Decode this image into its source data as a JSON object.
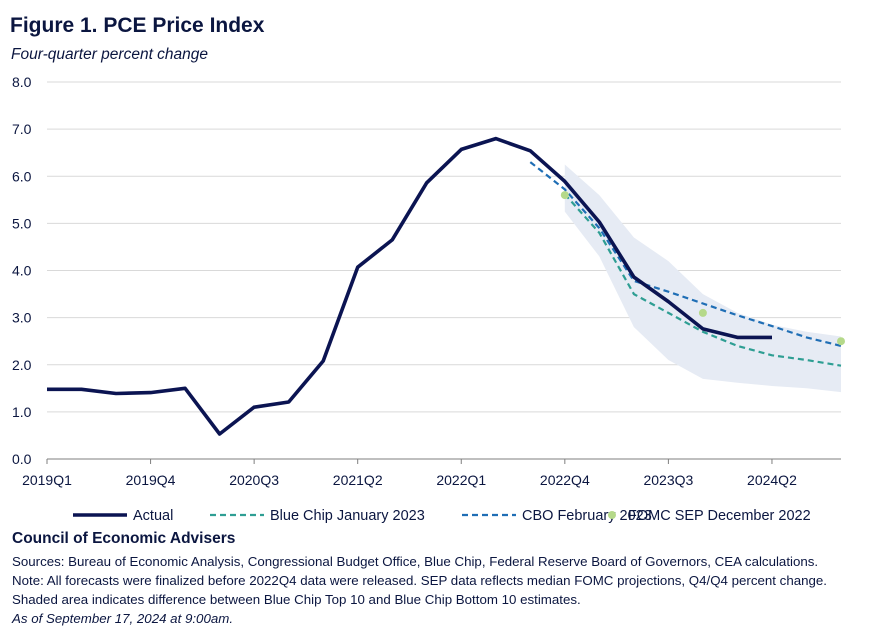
{
  "title": "Figure 1. PCE Price Index",
  "subtitle": "Four-quarter percent change",
  "chart_data": {
    "type": "line",
    "title": "Figure 1. PCE Price Index",
    "ylabel": "Four-quarter percent change",
    "xlabel": "",
    "ylim": [
      0,
      8
    ],
    "yticks": [
      "0.0",
      "1.0",
      "2.0",
      "3.0",
      "4.0",
      "5.0",
      "6.0",
      "7.0",
      "8.0"
    ],
    "quarters": [
      "2019Q1",
      "2019Q2",
      "2019Q3",
      "2019Q4",
      "2020Q1",
      "2020Q2",
      "2020Q3",
      "2020Q4",
      "2021Q1",
      "2021Q2",
      "2021Q3",
      "2021Q4",
      "2022Q1",
      "2022Q2",
      "2022Q3",
      "2022Q4",
      "2023Q1",
      "2023Q2",
      "2023Q3",
      "2023Q4",
      "2024Q1",
      "2024Q2",
      "2024Q3",
      "2024Q4"
    ],
    "x_tick_labels": [
      "2019Q1",
      "2019Q4",
      "2020Q3",
      "2021Q2",
      "2022Q1",
      "2022Q4",
      "2023Q3",
      "2024Q2"
    ],
    "series": [
      {
        "name": "Actual",
        "color": "#0b1452",
        "style": "solid",
        "points": [
          [
            "2019Q1",
            1.48
          ],
          [
            "2019Q2",
            1.48
          ],
          [
            "2019Q3",
            1.39
          ],
          [
            "2019Q4",
            1.41
          ],
          [
            "2020Q1",
            1.5
          ],
          [
            "2020Q2",
            0.53
          ],
          [
            "2020Q3",
            1.1
          ],
          [
            "2020Q4",
            1.21
          ],
          [
            "2021Q1",
            2.08
          ],
          [
            "2021Q2",
            4.07
          ],
          [
            "2021Q3",
            4.65
          ],
          [
            "2021Q4",
            5.86
          ],
          [
            "2022Q1",
            6.57
          ],
          [
            "2022Q2",
            6.8
          ],
          [
            "2022Q3",
            6.54
          ],
          [
            "2022Q4",
            5.89
          ],
          [
            "2023Q1",
            5.03
          ],
          [
            "2023Q2",
            3.86
          ],
          [
            "2023Q3",
            3.34
          ],
          [
            "2023Q4",
            2.76
          ],
          [
            "2024Q1",
            2.58
          ],
          [
            "2024Q2",
            2.58
          ]
        ]
      },
      {
        "name": "Blue Chip January 2023",
        "color": "#2e9e93",
        "style": "dashed",
        "points": [
          [
            "2022Q4",
            5.62
          ],
          [
            "2023Q1",
            4.8
          ],
          [
            "2023Q2",
            3.5
          ],
          [
            "2023Q3",
            3.1
          ],
          [
            "2023Q4",
            2.7
          ],
          [
            "2024Q1",
            2.4
          ],
          [
            "2024Q2",
            2.2
          ],
          [
            "2024Q3",
            2.1
          ],
          [
            "2024Q4",
            1.98
          ]
        ]
      },
      {
        "name": "CBO February 2023",
        "color": "#1f6eb5",
        "style": "dashed",
        "points": [
          [
            "2022Q3",
            6.3
          ],
          [
            "2022Q4",
            5.72
          ],
          [
            "2023Q1",
            4.9
          ],
          [
            "2023Q2",
            3.78
          ],
          [
            "2023Q3",
            3.55
          ],
          [
            "2023Q4",
            3.3
          ],
          [
            "2024Q1",
            3.05
          ],
          [
            "2024Q2",
            2.82
          ],
          [
            "2024Q3",
            2.58
          ],
          [
            "2024Q4",
            2.4
          ]
        ]
      },
      {
        "name": "FOMC SEP December 2022",
        "color": "#b5d98a",
        "style": "points",
        "points": [
          [
            "2022Q4",
            5.6
          ],
          [
            "2023Q4",
            3.1
          ],
          [
            "2024Q4",
            2.5
          ]
        ]
      }
    ],
    "band": {
      "description": "Blue Chip Top 10 to Bottom 10 range",
      "color": "#e6ebf4",
      "upper": [
        [
          "2022Q4",
          6.25
        ],
        [
          "2023Q1",
          5.6
        ],
        [
          "2023Q2",
          4.7
        ],
        [
          "2023Q3",
          4.2
        ],
        [
          "2023Q4",
          3.5
        ],
        [
          "2024Q1",
          3.1
        ],
        [
          "2024Q2",
          2.85
        ],
        [
          "2024Q3",
          2.7
        ],
        [
          "2024Q4",
          2.6
        ]
      ],
      "lower": [
        [
          "2022Q4",
          5.25
        ],
        [
          "2023Q1",
          4.3
        ],
        [
          "2023Q2",
          2.8
        ],
        [
          "2023Q3",
          2.1
        ],
        [
          "2023Q4",
          1.7
        ],
        [
          "2024Q1",
          1.62
        ],
        [
          "2024Q2",
          1.55
        ],
        [
          "2024Q3",
          1.5
        ],
        [
          "2024Q4",
          1.42
        ]
      ]
    },
    "grid": true,
    "legend_position": "bottom"
  },
  "footer": {
    "org": "Council of Economic Advisers",
    "sources": "Sources: Bureau of Economic Analysis, Congressional Budget Office, Blue Chip, Federal Reserve Board of Governors, CEA calculations.",
    "note": "Note: All forecasts were finalized before 2022Q4 data were released. SEP data reflects median FOMC projections, Q4/Q4 percent change.",
    "shaded": "Shaded area indicates difference between Blue Chip Top 10 and Blue Chip Bottom 10 estimates.",
    "asof": "As of September 17, 2024 at 9:00am."
  }
}
